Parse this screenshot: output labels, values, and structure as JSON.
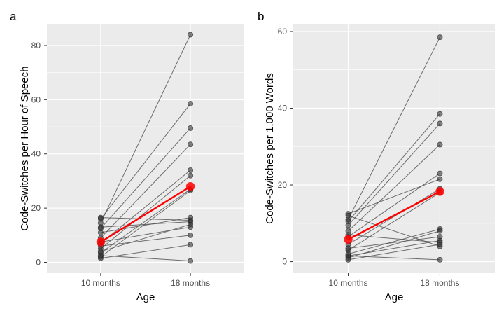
{
  "chart_data": [
    {
      "type": "line",
      "panel_label": "a",
      "xlabel": "Age",
      "ylabel": "Code-Switches per Hour of Speech",
      "categories": [
        "10 months",
        "18 months"
      ],
      "yticks": [
        0,
        20,
        40,
        60,
        80
      ],
      "ylim": [
        -4,
        88
      ],
      "grid": true,
      "series": [
        {
          "values": [
            14.5,
            84
          ]
        },
        {
          "values": [
            16,
            58.5
          ]
        },
        {
          "values": [
            12.5,
            49.5
          ]
        },
        {
          "values": [
            9,
            43.5
          ]
        },
        {
          "values": [
            7,
            34
          ]
        },
        {
          "values": [
            5,
            32
          ]
        },
        {
          "values": [
            3.5,
            27
          ]
        },
        {
          "values": [
            2,
            26.5
          ]
        },
        {
          "values": [
            11,
            16.5
          ]
        },
        {
          "values": [
            16.5,
            15.5
          ]
        },
        {
          "values": [
            13,
            15
          ]
        },
        {
          "values": [
            4,
            14
          ]
        },
        {
          "values": [
            7.5,
            13
          ]
        },
        {
          "values": [
            6,
            10
          ]
        },
        {
          "values": [
            1.5,
            6.5
          ]
        },
        {
          "values": [
            2.5,
            0.5
          ]
        }
      ],
      "mean": {
        "values": [
          7.5,
          28
        ],
        "color": "#ff0000"
      }
    },
    {
      "type": "line",
      "panel_label": "b",
      "xlabel": "Age",
      "ylabel": "Code-Switches per 1,000 Words",
      "categories": [
        "10 months",
        "18 months"
      ],
      "yticks": [
        0,
        20,
        40,
        60
      ],
      "ylim": [
        -3,
        62
      ],
      "grid": true,
      "series": [
        {
          "values": [
            11,
            58.5
          ]
        },
        {
          "values": [
            10.5,
            38.5
          ]
        },
        {
          "values": [
            9.5,
            36
          ]
        },
        {
          "values": [
            8,
            30.5
          ]
        },
        {
          "values": [
            6.5,
            23
          ]
        },
        {
          "values": [
            12.5,
            21.5
          ]
        },
        {
          "values": [
            4.5,
            19
          ]
        },
        {
          "values": [
            3,
            18
          ]
        },
        {
          "values": [
            2,
            8.5
          ]
        },
        {
          "values": [
            1,
            8
          ]
        },
        {
          "values": [
            3.5,
            6.5
          ]
        },
        {
          "values": [
            1.5,
            5.5
          ]
        },
        {
          "values": [
            7,
            5
          ]
        },
        {
          "values": [
            12,
            4
          ]
        },
        {
          "values": [
            0.5,
            4.5
          ]
        },
        {
          "values": [
            1.5,
            0.5
          ]
        }
      ],
      "mean": {
        "values": [
          5.8,
          18.3
        ],
        "color": "#ff0000"
      }
    }
  ]
}
